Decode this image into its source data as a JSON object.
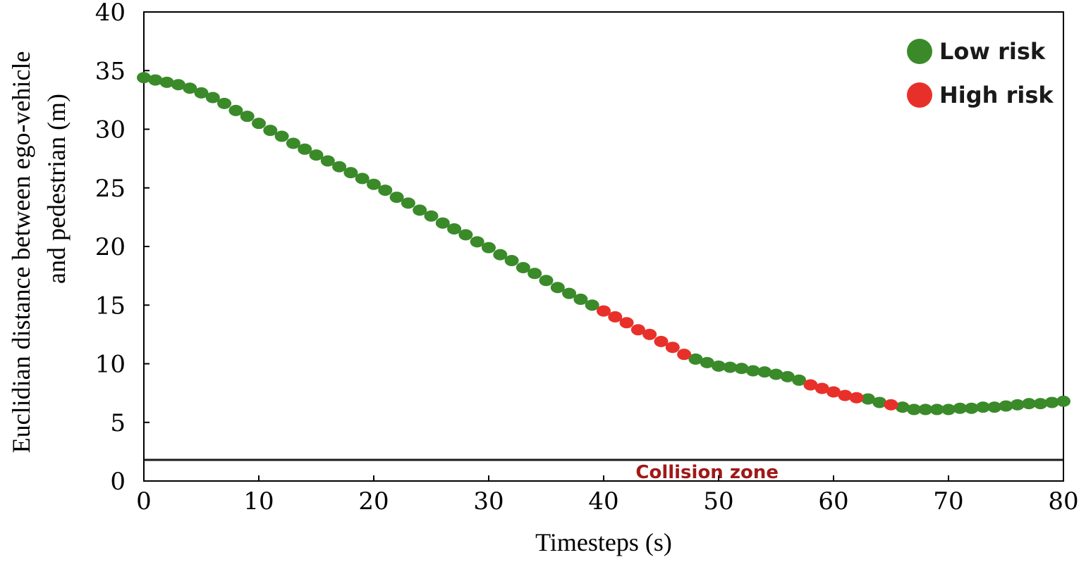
{
  "chart_data": {
    "type": "scatter",
    "xlabel": "Timesteps (s)",
    "ylabel_line1": "Euclidian distance between ego-vehicle",
    "ylabel_line2": "and pedestrian (m)",
    "xlim": [
      0,
      80
    ],
    "ylim": [
      0,
      40
    ],
    "xticks": [
      0,
      10,
      20,
      30,
      40,
      50,
      60,
      70,
      80
    ],
    "yticks": [
      0,
      5,
      10,
      15,
      20,
      25,
      30,
      35,
      40
    ],
    "grid": false,
    "legend_position": "top-right",
    "legend": [
      {
        "label": "Low risk",
        "color": "#3a8a2a"
      },
      {
        "label": "High risk",
        "color": "#e8302a"
      }
    ],
    "collision_zone": {
      "label": "Collision zone",
      "y": 1.8
    },
    "series": [
      {
        "name": "Low risk",
        "color": "#3a8a2a",
        "points": [
          [
            0,
            34.4
          ],
          [
            1,
            34.2
          ],
          [
            2,
            34.0
          ],
          [
            3,
            33.8
          ],
          [
            4,
            33.5
          ],
          [
            5,
            33.1
          ],
          [
            6,
            32.7
          ],
          [
            7,
            32.2
          ],
          [
            8,
            31.6
          ],
          [
            9,
            31.1
          ],
          [
            10,
            30.5
          ],
          [
            11,
            29.9
          ],
          [
            12,
            29.4
          ],
          [
            13,
            28.8
          ],
          [
            14,
            28.3
          ],
          [
            15,
            27.8
          ],
          [
            16,
            27.3
          ],
          [
            17,
            26.8
          ],
          [
            18,
            26.3
          ],
          [
            19,
            25.8
          ],
          [
            20,
            25.3
          ],
          [
            21,
            24.8
          ],
          [
            22,
            24.2
          ],
          [
            23,
            23.7
          ],
          [
            24,
            23.1
          ],
          [
            25,
            22.6
          ],
          [
            26,
            22.0
          ],
          [
            27,
            21.5
          ],
          [
            28,
            21.0
          ],
          [
            29,
            20.4
          ],
          [
            30,
            19.9
          ],
          [
            31,
            19.3
          ],
          [
            32,
            18.8
          ],
          [
            33,
            18.2
          ],
          [
            34,
            17.7
          ],
          [
            35,
            17.1
          ],
          [
            36,
            16.5
          ],
          [
            37,
            16.0
          ],
          [
            38,
            15.5
          ],
          [
            39,
            15.0
          ],
          [
            48,
            10.4
          ],
          [
            49,
            10.1
          ],
          [
            50,
            9.8
          ],
          [
            51,
            9.7
          ],
          [
            52,
            9.6
          ],
          [
            53,
            9.4
          ],
          [
            54,
            9.3
          ],
          [
            55,
            9.1
          ],
          [
            56,
            8.9
          ],
          [
            57,
            8.6
          ],
          [
            63,
            7.0
          ],
          [
            64,
            6.7
          ],
          [
            66,
            6.3
          ],
          [
            67,
            6.1
          ],
          [
            68,
            6.1
          ],
          [
            69,
            6.1
          ],
          [
            70,
            6.1
          ],
          [
            71,
            6.2
          ],
          [
            72,
            6.2
          ],
          [
            73,
            6.3
          ],
          [
            74,
            6.3
          ],
          [
            75,
            6.4
          ],
          [
            76,
            6.5
          ],
          [
            77,
            6.6
          ],
          [
            78,
            6.6
          ],
          [
            79,
            6.7
          ],
          [
            80,
            6.8
          ]
        ]
      },
      {
        "name": "High risk",
        "color": "#e8302a",
        "points": [
          [
            40,
            14.5
          ],
          [
            41,
            14.0
          ],
          [
            42,
            13.5
          ],
          [
            43,
            12.9
          ],
          [
            44,
            12.5
          ],
          [
            45,
            11.9
          ],
          [
            46,
            11.4
          ],
          [
            47,
            10.8
          ],
          [
            58,
            8.2
          ],
          [
            59,
            7.9
          ],
          [
            60,
            7.6
          ],
          [
            61,
            7.3
          ],
          [
            62,
            7.1
          ],
          [
            65,
            6.5
          ]
        ]
      }
    ]
  }
}
